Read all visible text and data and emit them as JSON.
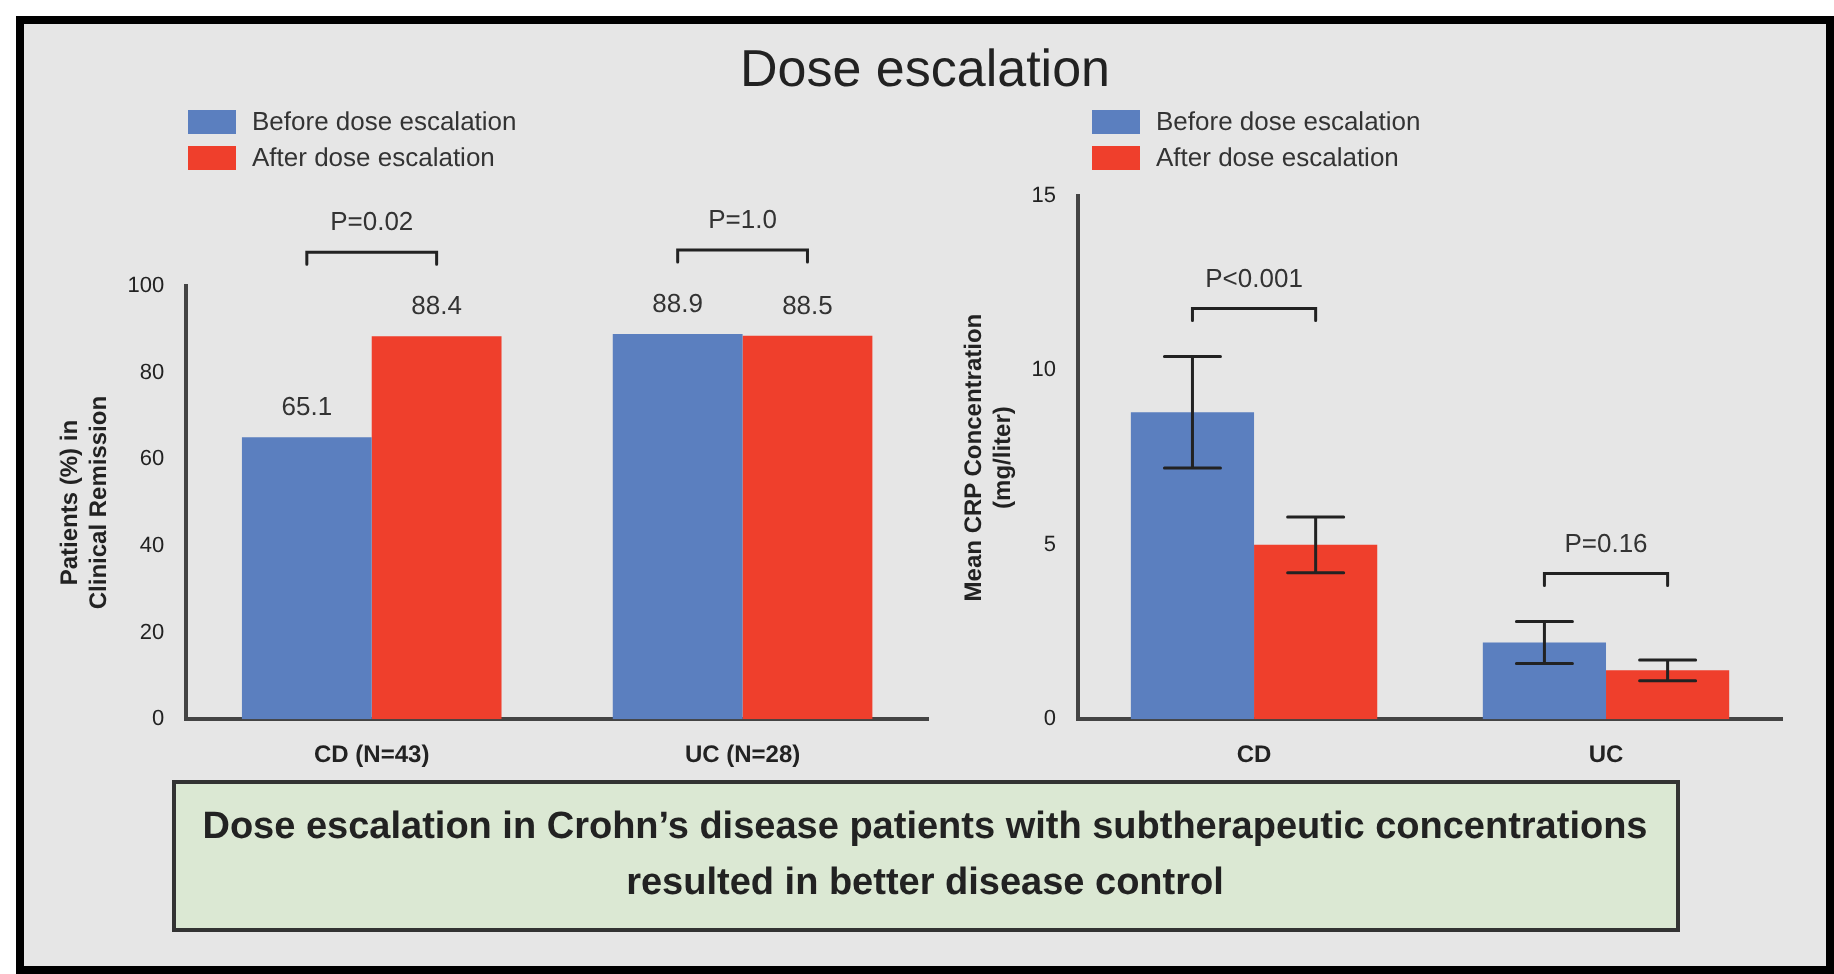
{
  "chart_data": [
    {
      "type": "bar",
      "title": "Dose escalation",
      "ylabel": "Patients (%) in\nClinical Remission",
      "categories": [
        "CD (N=43)",
        "UC (N=28)"
      ],
      "series": [
        {
          "name": "Before dose escalation",
          "color": "#5b7fbf",
          "values": [
            65.1,
            88.9
          ]
        },
        {
          "name": "After dose escalation",
          "color": "#ef3f2c",
          "values": [
            88.4,
            88.5
          ]
        }
      ],
      "ylim": [
        0,
        100
      ],
      "yticks": [
        0,
        20,
        40,
        60,
        80,
        100
      ],
      "grid": false,
      "legend": "top left",
      "data_labels": true,
      "annotations": [
        "P=0.02",
        "P=1.0"
      ]
    },
    {
      "type": "bar",
      "ylabel": "Mean CRP Concentration\n(mg/liter)",
      "categories": [
        "CD",
        "UC"
      ],
      "series": [
        {
          "name": "Before dose escalation",
          "color": "#5b7fbf",
          "values": [
            8.8,
            2.2
          ],
          "errors": [
            1.6,
            0.6
          ]
        },
        {
          "name": "After dose escalation",
          "color": "#ef3f2c",
          "values": [
            5.0,
            1.4
          ],
          "errors": [
            0.8,
            0.3
          ]
        }
      ],
      "ylim": [
        0,
        15
      ],
      "yticks": [
        0,
        5,
        10,
        15
      ],
      "grid": false,
      "legend": "top left",
      "annotations": [
        "P<0.001",
        "P=0.16"
      ]
    },
    {
      "type": "other",
      "annotations": [
        "Dose escalation in Crohn’s disease patients with subtherapeutic concentrations resulted in better disease control"
      ]
    }
  ]
}
